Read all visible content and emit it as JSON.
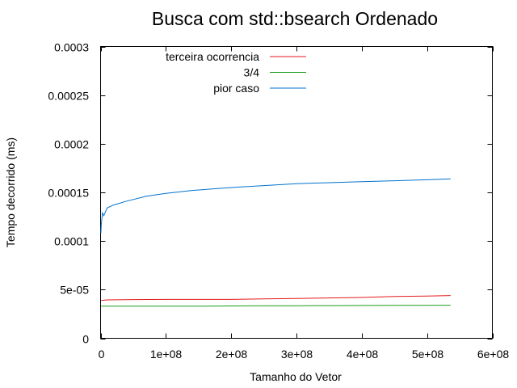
{
  "chart_data": {
    "type": "line",
    "title": "Busca com std::bsearch Ordenado",
    "xlabel": "Tamanho do Vetor",
    "ylabel": "Tempo decorrido (ms)",
    "xlim": [
      0,
      600000000
    ],
    "ylim": [
      0,
      0.0003
    ],
    "grid": false,
    "legend_position": "top-left",
    "x_ticks": [
      {
        "value": 0,
        "label": "0"
      },
      {
        "value": 100000000,
        "label": "1e+08"
      },
      {
        "value": 200000000,
        "label": "2e+08"
      },
      {
        "value": 300000000,
        "label": "3e+08"
      },
      {
        "value": 400000000,
        "label": "4e+08"
      },
      {
        "value": 500000000,
        "label": "5e+08"
      },
      {
        "value": 600000000,
        "label": "6e+08"
      }
    ],
    "y_ticks": [
      {
        "value": 0,
        "label": "0"
      },
      {
        "value": 5e-05,
        "label": "5e-05"
      },
      {
        "value": 0.0001,
        "label": "0.0001"
      },
      {
        "value": 0.00015,
        "label": "0.00015"
      },
      {
        "value": 0.0002,
        "label": "0.0002"
      },
      {
        "value": 0.00025,
        "label": "0.00025"
      },
      {
        "value": 0.0003,
        "label": "0.0003"
      }
    ],
    "series": [
      {
        "name": "terceira ocorrencia",
        "color": "#e41a1c",
        "x": [
          1000000,
          10000000,
          50000000,
          100000000,
          150000000,
          200000000,
          250000000,
          300000000,
          350000000,
          400000000,
          450000000,
          500000000,
          536000000
        ],
        "y": [
          3.9e-05,
          3.95e-05,
          3.98e-05,
          4e-05,
          4e-05,
          4e-05,
          4.05e-05,
          4.1e-05,
          4.15e-05,
          4.2e-05,
          4.3e-05,
          4.35e-05,
          4.4e-05
        ]
      },
      {
        "name": "3/4",
        "color": "#1a9a1a",
        "x": [
          1000000,
          50000000,
          100000000,
          150000000,
          200000000,
          250000000,
          300000000,
          350000000,
          400000000,
          450000000,
          500000000,
          536000000
        ],
        "y": [
          3.3e-05,
          3.3e-05,
          3.3e-05,
          3.3e-05,
          3.32e-05,
          3.34e-05,
          3.35e-05,
          3.36e-05,
          3.37e-05,
          3.38e-05,
          3.39e-05,
          3.4e-05
        ]
      },
      {
        "name": "pior caso",
        "color": "#0072d0",
        "x": [
          500000,
          1000000,
          2000000,
          3000000,
          5000000,
          8000000,
          10000000,
          20000000,
          40000000,
          70000000,
          100000000,
          140000000,
          200000000,
          250000000,
          300000000,
          350000000,
          400000000,
          450000000,
          500000000,
          536000000
        ],
        "y": [
          0.000108,
          0.000116,
          0.000123,
          0.000129,
          0.000126,
          0.000131,
          0.000134,
          0.000137,
          0.000141,
          0.000146,
          0.000149,
          0.000152,
          0.000155,
          0.000157,
          0.000159,
          0.00016,
          0.000161,
          0.000162,
          0.000163,
          0.000164
        ]
      }
    ]
  }
}
